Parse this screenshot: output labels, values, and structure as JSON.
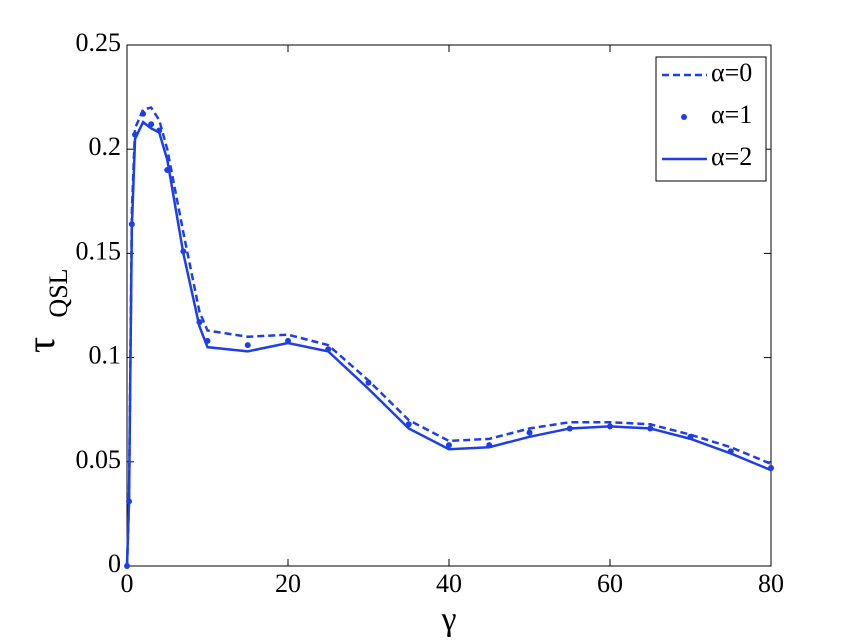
{
  "chart_data": {
    "type": "line",
    "x_label": "γ",
    "y_label": "τ",
    "y_label_sub": "QSL",
    "x": [
      0,
      0.25,
      0.6,
      1,
      2,
      3,
      4,
      5,
      7,
      9,
      10,
      15,
      20,
      25,
      30,
      35,
      40,
      45,
      50,
      55,
      60,
      65,
      70,
      75,
      80
    ],
    "series": [
      {
        "name": "α=0",
        "color": "#1f3fe6",
        "style": "dashed",
        "values": [
          0,
          0.031,
          0.17,
          0.21,
          0.219,
          0.22,
          0.214,
          0.2,
          0.16,
          0.122,
          0.113,
          0.11,
          0.111,
          0.106,
          0.089,
          0.07,
          0.06,
          0.061,
          0.066,
          0.069,
          0.069,
          0.068,
          0.063,
          0.057,
          0.049
        ]
      },
      {
        "name": "α=1",
        "color": "#1f3fe6",
        "style": "dots",
        "values": [
          0,
          0.031,
          0.164,
          0.207,
          0.217,
          0.212,
          0.209,
          0.19,
          0.151,
          0.117,
          0.108,
          0.106,
          0.108,
          0.104,
          0.088,
          0.068,
          0.058,
          0.058,
          0.064,
          0.066,
          0.067,
          0.066,
          0.062,
          0.055,
          0.047
        ]
      },
      {
        "name": "α=2",
        "color": "#1f3fe6",
        "style": "solid",
        "values": [
          0,
          0.031,
          0.162,
          0.205,
          0.213,
          0.21,
          0.208,
          0.195,
          0.15,
          0.115,
          0.105,
          0.103,
          0.107,
          0.103,
          0.085,
          0.066,
          0.056,
          0.057,
          0.062,
          0.066,
          0.067,
          0.066,
          0.061,
          0.054,
          0.046
        ]
      }
    ],
    "xlim": [
      0,
      80
    ],
    "xticks": [
      0,
      20,
      40,
      60,
      80
    ],
    "ylim": [
      0,
      0.25
    ],
    "yticks": [
      0,
      0.05,
      0.1,
      0.15,
      0.2,
      0.25
    ],
    "grid": false,
    "legend": "upper right"
  }
}
